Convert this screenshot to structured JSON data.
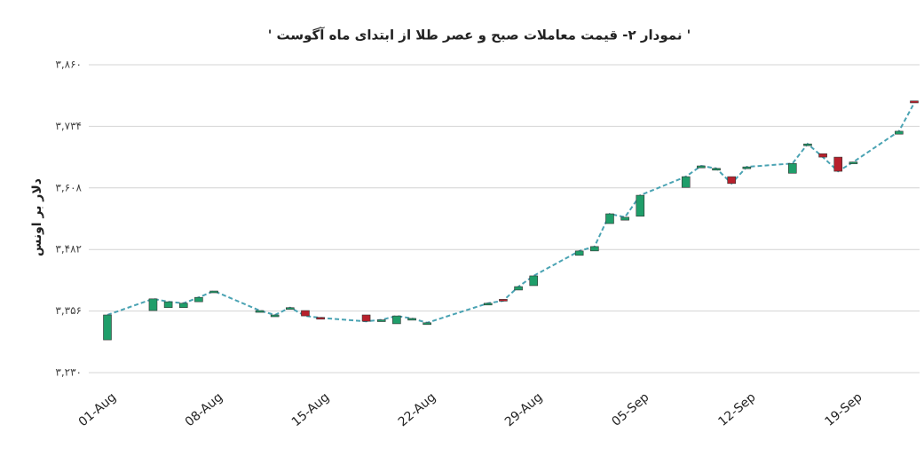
{
  "chart_data": {
    "type": "candlestick",
    "title": "'  نمودار ۲- قیمت معاملات صبح و عصر طلا از ابتدای ماه آگوست  '",
    "y_label": "دلار بر اونس",
    "x": [
      "01-Aug",
      "04-Aug",
      "05-Aug",
      "06-Aug",
      "07-Aug",
      "08-Aug",
      "11-Aug",
      "12-Aug",
      "13-Aug",
      "14-Aug",
      "15-Aug",
      "18-Aug",
      "19-Aug",
      "20-Aug",
      "21-Aug",
      "22-Aug",
      "26-Aug",
      "27-Aug",
      "28-Aug",
      "29-Aug",
      "01-Sep",
      "02-Sep",
      "03-Sep",
      "04-Sep",
      "05-Sep",
      "08-Sep",
      "09-Sep",
      "10-Sep",
      "11-Sep",
      "12-Sep",
      "15-Sep",
      "16-Sep",
      "17-Sep",
      "18-Sep",
      "19-Sep",
      "22-Sep",
      "23-Sep"
    ],
    "open": [
      3297,
      3357,
      3363,
      3363,
      3375,
      3395,
      3355,
      3346,
      3361,
      3357,
      3343,
      3348,
      3337,
      3330,
      3340,
      3331,
      3371,
      3380,
      3399,
      3408,
      3470,
      3479,
      3535,
      3542,
      3550,
      3609,
      3649,
      3646,
      3631,
      3648,
      3638,
      3696,
      3678,
      3671,
      3660,
      3718,
      3786
    ],
    "close": [
      3348,
      3381,
      3375,
      3372,
      3384,
      3397,
      3357,
      3348,
      3363,
      3346,
      3342,
      3335,
      3338,
      3346,
      3341,
      3332,
      3372,
      3377,
      3406,
      3428,
      3479,
      3488,
      3555,
      3548,
      3593,
      3631,
      3653,
      3648,
      3617,
      3651,
      3658,
      3698,
      3671,
      3642,
      3661,
      3724,
      3782
    ],
    "up_color": "#1f9e6a",
    "down_color": "#b8202c",
    "line_color": "#4aa3b3",
    "xlim": [
      "01-Aug",
      "23-Sep"
    ],
    "xticks": [
      "01-Aug",
      "08-Aug",
      "15-Aug",
      "22-Aug",
      "29-Aug",
      "05-Sep",
      "12-Sep",
      "19-Sep"
    ],
    "ylim": [
      3230,
      3860
    ],
    "yticks": [
      {
        "value": 3230,
        "label": "۳,۲۳۰"
      },
      {
        "value": 3356,
        "label": "۳,۳۵۶"
      },
      {
        "value": 3482,
        "label": "۳,۴۸۲"
      },
      {
        "value": 3608,
        "label": "۳,۶۰۸"
      },
      {
        "value": 3734,
        "label": "۳,۷۳۴"
      },
      {
        "value": 3860,
        "label": "۳,۸۶۰"
      }
    ],
    "grid": true
  }
}
